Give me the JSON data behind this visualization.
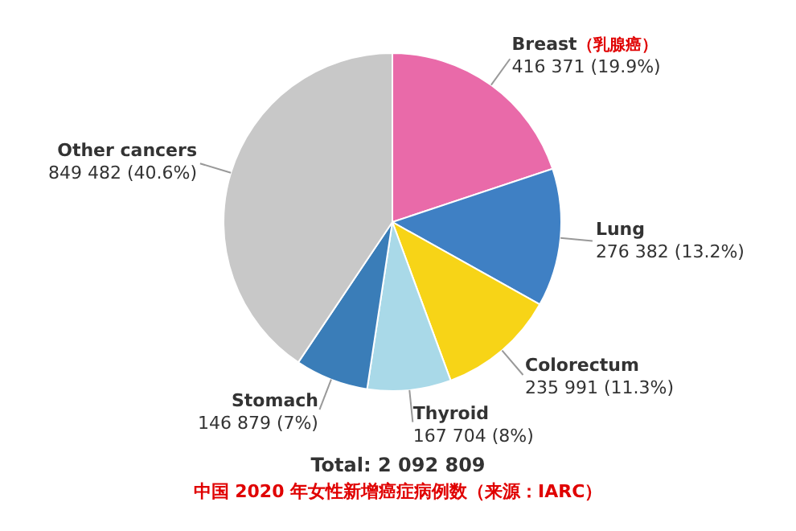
{
  "chart_data": {
    "type": "pie",
    "categories": [
      "Breast",
      "Lung",
      "Colorectum",
      "Thyroid",
      "Stomach",
      "Other cancers"
    ],
    "values": [
      416371,
      276382,
      235991,
      167704,
      146879,
      849482
    ],
    "colors": [
      "#e96aa9",
      "#3f80c4",
      "#f7d417",
      "#a9d9e8",
      "#3a7db8",
      "#c8c8c8"
    ],
    "value_labels": [
      "416 371 (19.9%)",
      "276 382 (13.2%)",
      "235 991 (11.3%)",
      "167 704 (8%)",
      "146 879 (7%)",
      "849 482 (40.6%)"
    ],
    "annotations": [
      {
        "text": "（乳腺癌）",
        "x": "Breast"
      },
      "Total: 2 092 809",
      "中国 2020 年女性新增癌症病例数（来源：IARC）"
    ]
  }
}
